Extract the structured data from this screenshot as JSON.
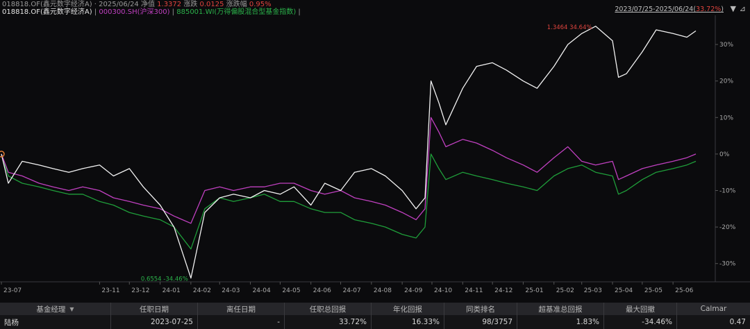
{
  "header": {
    "line1_prefix": "018818.OF(鑫元数字经济A)  ·  2025/06/24  净值 ",
    "line1_nav": "1.3372",
    "line1_mid": "  涨跌 ",
    "line1_chg": "0.0125",
    "line1_mid2": "  涨跌幅 ",
    "line1_pct": "0.95%",
    "legend": [
      {
        "text": "018818.OF(鑫元数字经济A)",
        "color": "#e6e6e6"
      },
      {
        "text": "000300.SH(沪深300)",
        "color": "#c040c0"
      },
      {
        "text": "885001.WI(万得偏股混合型基金指数)",
        "color": "#2bb24a"
      }
    ],
    "range_text": "2023/07/25-2025/06/24(",
    "range_pct": "33.72%",
    "range_close": ")",
    "controls": [
      "▼",
      "⊿"
    ]
  },
  "chart_data": {
    "type": "line",
    "ylabel": "",
    "ylim": [
      -35,
      38
    ],
    "y_ticks": [
      "30%",
      "20%",
      "10%",
      "0%",
      "-10%",
      "-20%",
      "-30%"
    ],
    "x_ticks": [
      "23-07",
      "23-11",
      "23-12",
      "24-01",
      "24-02",
      "24-03",
      "24-04",
      "24-05",
      "24-06",
      "24-07",
      "24-08",
      "24-09",
      "24-10",
      "24-11",
      "24-12",
      "25-01",
      "25-02",
      "25-03",
      "25-04",
      "25-05",
      "25-06"
    ],
    "grid": false,
    "dates": [
      "2023-07-25",
      "2023-08-01",
      "2023-08-15",
      "2023-09-01",
      "2023-09-15",
      "2023-10-01",
      "2023-10-15",
      "2023-11-01",
      "2023-11-15",
      "2023-12-01",
      "2023-12-15",
      "2024-01-01",
      "2024-01-15",
      "2024-02-01",
      "2024-02-15",
      "2024-03-01",
      "2024-03-15",
      "2024-04-01",
      "2024-04-15",
      "2024-05-01",
      "2024-05-15",
      "2024-06-01",
      "2024-06-15",
      "2024-07-01",
      "2024-07-15",
      "2024-08-01",
      "2024-08-15",
      "2024-09-01",
      "2024-09-15",
      "2024-09-24",
      "2024-09-30",
      "2024-10-08",
      "2024-10-15",
      "2024-11-01",
      "2024-11-15",
      "2024-12-01",
      "2024-12-15",
      "2025-01-01",
      "2025-01-15",
      "2025-02-01",
      "2025-02-15",
      "2025-03-01",
      "2025-03-15",
      "2025-04-01",
      "2025-04-07",
      "2025-04-15",
      "2025-05-01",
      "2025-05-15",
      "2025-06-01",
      "2025-06-15",
      "2025-06-24"
    ],
    "series": [
      {
        "name": "018818.OF(鑫元数字经济A)",
        "color": "#f2f2f2",
        "values": [
          0,
          -8,
          -2,
          -3,
          -4,
          -5,
          -4,
          -3,
          -6,
          -4,
          -9,
          -14,
          -20,
          -34,
          -16,
          -12,
          -11,
          -12,
          -10,
          -11,
          -9,
          -14,
          -8,
          -10,
          -5,
          -4,
          -6,
          -10,
          -15,
          -12,
          20,
          14,
          8,
          18,
          24,
          25,
          23,
          20,
          18,
          24,
          30,
          33,
          35,
          31,
          21,
          22,
          28,
          34,
          33,
          32,
          33.72
        ]
      },
      {
        "name": "000300.SH(沪深300)",
        "color": "#c040c0",
        "values": [
          0,
          -5,
          -6,
          -8,
          -9,
          -10,
          -9,
          -10,
          -12,
          -13,
          -14,
          -15,
          -17,
          -19,
          -10,
          -9,
          -10,
          -9,
          -9,
          -8,
          -8,
          -10,
          -11,
          -10,
          -12,
          -13,
          -14,
          -16,
          -18,
          -15,
          10,
          6,
          2,
          4,
          3,
          1,
          -1,
          -3,
          -5,
          -1,
          2,
          -2,
          -3,
          -2,
          -7,
          -6,
          -4,
          -3,
          -2,
          -1,
          0
        ]
      },
      {
        "name": "885001.WI(万得偏股混合型基金指数)",
        "color": "#1f9e3a",
        "values": [
          0,
          -6,
          -8,
          -9,
          -10,
          -11,
          -11,
          -13,
          -14,
          -16,
          -17,
          -18,
          -20,
          -26,
          -15,
          -12,
          -13,
          -12,
          -11,
          -13,
          -13,
          -15,
          -16,
          -16,
          -18,
          -19,
          -20,
          -22,
          -23,
          -20,
          0,
          -4,
          -7,
          -5,
          -6,
          -7,
          -8,
          -9,
          -10,
          -6,
          -4,
          -3,
          -5,
          -6,
          -11,
          -10,
          -7,
          -5,
          -4,
          -3,
          -2
        ]
      }
    ],
    "annotations": [
      {
        "text": "1.3464 34.64%",
        "color": "#e0443e"
      },
      {
        "text": "0.6554 -34.46%",
        "color": "#2bb24a"
      }
    ]
  },
  "table": {
    "headers": [
      "基金经理",
      "任职日期",
      "离任日期",
      "任职总回报",
      "年化回报",
      "同类排名",
      "超基准总回报",
      "最大回撤",
      "Calmar"
    ],
    "row": [
      "陆杨",
      "2023-07-25",
      "-",
      "33.72%",
      "16.33%",
      "98/3757",
      "1.83%",
      "-34.46%",
      "0.47"
    ]
  }
}
